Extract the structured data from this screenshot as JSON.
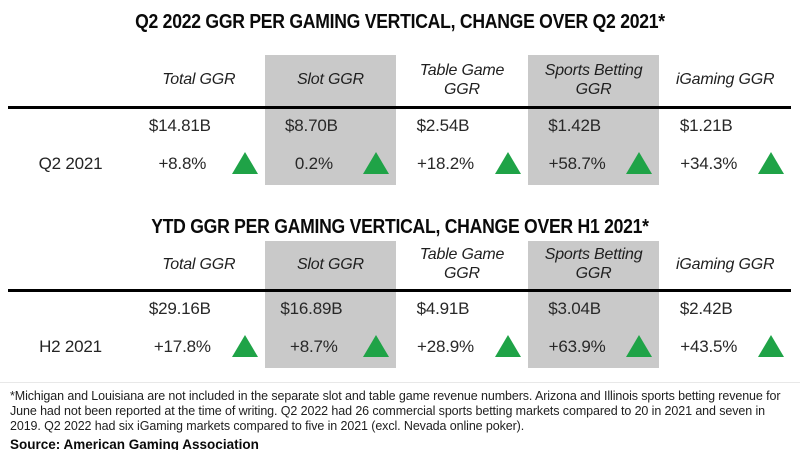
{
  "colors": {
    "highlight-gray": "#c9c9c9",
    "arrow-green": "#1fa347",
    "rule-black": "#000000"
  },
  "icons": {
    "change_indicator": "up-triangle-icon"
  },
  "chart_data": [
    {
      "type": "table",
      "title": "Q2 2022 GGR PER GAMING VERTICAL, CHANGE OVER Q2 2021*",
      "row_label": "Q2 2021",
      "columns": [
        "Total GGR",
        "Slot GGR",
        "Table Game GGR",
        "Sports Betting GGR",
        "iGaming GGR"
      ],
      "highlighted_columns": [
        "Slot GGR",
        "Sports Betting GGR"
      ],
      "ggr_values": [
        "$14.81B",
        "$8.70B",
        "$2.54B",
        "$1.42B",
        "$1.21B"
      ],
      "change_values": [
        "+8.8%",
        "0.2%",
        "+18.2%",
        "+58.7%",
        "+34.3%"
      ],
      "change_direction": "up"
    },
    {
      "type": "table",
      "title": "YTD GGR PER GAMING VERTICAL, CHANGE OVER H1 2021*",
      "row_label": "H2 2021",
      "columns": [
        "Total GGR",
        "Slot GGR",
        "Table Game GGR",
        "Sports Betting GGR",
        "iGaming GGR"
      ],
      "highlighted_columns": [
        "Slot GGR",
        "Sports Betting GGR"
      ],
      "ggr_values": [
        "$29.16B",
        "$16.89B",
        "$4.91B",
        "$3.04B",
        "$2.42B"
      ],
      "change_values": [
        "+17.8%",
        "+8.7%",
        "+28.9%",
        "+63.9%",
        "+43.5%"
      ],
      "change_direction": "up"
    }
  ],
  "footnote": "*Michigan and Louisiana are not included in the separate slot and table game revenue numbers. Arizona and Illinois sports betting revenue for June had not been reported at the time of writing. Q2 2022 had 26 commercial sports betting markets compared to 20 in 2021 and seven in 2019. Q2 2022 had six iGaming markets compared to five in 2021 (excl. Nevada online poker).",
  "source": "Source: American Gaming Association"
}
